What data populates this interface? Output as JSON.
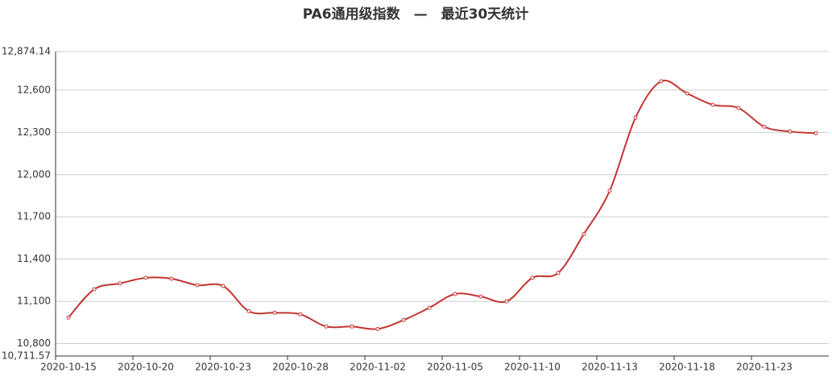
{
  "chart_data": {
    "type": "line",
    "title": "PA6通用级指数　—　最近30天统计",
    "categories": [
      "2020-10-15",
      null,
      null,
      "2020-10-20",
      null,
      null,
      "2020-10-23",
      null,
      null,
      "2020-10-28",
      null,
      null,
      "2020-11-02",
      null,
      null,
      "2020-11-05",
      null,
      null,
      "2020-11-10",
      null,
      null,
      "2020-11-13",
      null,
      null,
      "2020-11-18",
      null,
      null,
      "2020-11-23",
      null,
      null
    ],
    "series": [
      {
        "name": "PA6通用级指数",
        "color": "#c23531",
        "values": [
          10985,
          11186,
          11227,
          11267,
          11261,
          11215,
          11209,
          11030,
          11019,
          11008,
          10921,
          10921,
          10904,
          10967,
          11054,
          11152,
          11134,
          11100,
          11267,
          11302,
          11579,
          11885,
          12404,
          12663,
          12577,
          12496,
          12473,
          12340,
          12306,
          12294
        ]
      }
    ],
    "ylim": [
      10711.57,
      12874.14
    ],
    "yticks": [
      {
        "value": 10711.57,
        "label": "10,711.57"
      },
      {
        "value": 10800,
        "label": "10,800"
      },
      {
        "value": 11100,
        "label": "11,100"
      },
      {
        "value": 11400,
        "label": "11,400"
      },
      {
        "value": 11700,
        "label": "11,700"
      },
      {
        "value": 12000,
        "label": "12,000"
      },
      {
        "value": 12300,
        "label": "12,300"
      },
      {
        "value": 12600,
        "label": "12,600"
      },
      {
        "value": 12874.14,
        "label": "12,874.14"
      }
    ],
    "grid": true
  }
}
